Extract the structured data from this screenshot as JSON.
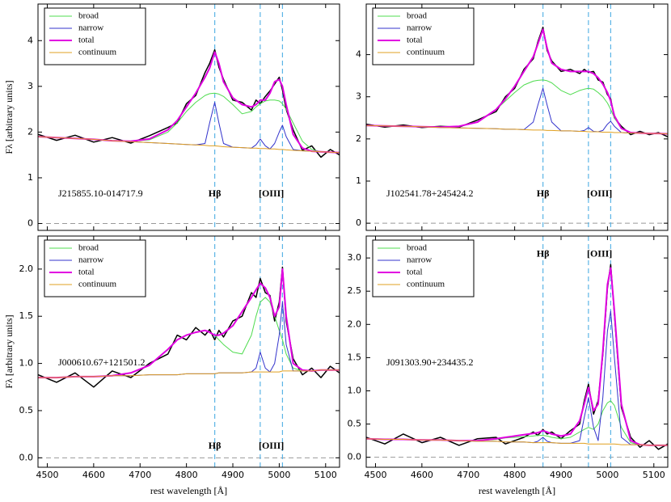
{
  "chart_data": [
    {
      "type": "line",
      "ylabel": "Fλ [arbitrary units]",
      "name_label": "J215855.10-014717.9",
      "line_labels": [
        "Hβ",
        "[OIII]"
      ],
      "legend": "upper left",
      "xlim": [
        4480,
        5130
      ],
      "xticks": [
        4500,
        4600,
        4700,
        4800,
        4900,
        5000,
        5100
      ],
      "ylim": [
        -0.15,
        4.8
      ],
      "yticks": [
        0,
        1,
        2,
        3,
        4
      ],
      "lines": [
        4861,
        4959,
        5007
      ],
      "lines_color": "#5bb4e6",
      "hline": 0,
      "x": [
        4480,
        4520,
        4560,
        4600,
        4640,
        4680,
        4720,
        4760,
        4780,
        4800,
        4820,
        4840,
        4850,
        4861,
        4870,
        4880,
        4900,
        4920,
        4940,
        4950,
        4959,
        4970,
        4980,
        4990,
        5000,
        5007,
        5015,
        5030,
        5050,
        5070,
        5090,
        5110,
        5130
      ],
      "spectrum": {
        "color": "#000000",
        "values": [
          1.95,
          1.82,
          1.93,
          1.78,
          1.88,
          1.76,
          1.92,
          2.1,
          2.2,
          2.62,
          2.8,
          3.3,
          3.5,
          3.8,
          3.42,
          3.15,
          2.7,
          2.65,
          2.48,
          2.7,
          2.62,
          2.78,
          2.9,
          3.05,
          3.2,
          2.92,
          2.5,
          2.05,
          1.6,
          1.7,
          1.45,
          1.62,
          1.5
        ]
      },
      "series": [
        {
          "name": "broad",
          "color": "#4fdc4f",
          "values": [
            1.9,
            1.88,
            1.86,
            1.84,
            1.81,
            1.8,
            1.83,
            2.0,
            2.2,
            2.45,
            2.65,
            2.8,
            2.84,
            2.85,
            2.83,
            2.78,
            2.6,
            2.4,
            2.45,
            2.55,
            2.62,
            2.68,
            2.7,
            2.7,
            2.68,
            2.62,
            2.5,
            2.2,
            1.8,
            1.62,
            1.57,
            1.56,
            1.55
          ]
        },
        {
          "name": "narrow",
          "color": "#3333cc",
          "values": [
            1.9,
            1.88,
            1.86,
            1.84,
            1.81,
            1.79,
            1.77,
            1.75,
            1.74,
            1.73,
            1.72,
            1.75,
            2.2,
            2.65,
            2.2,
            1.75,
            1.67,
            1.66,
            1.65,
            1.72,
            1.85,
            1.7,
            1.63,
            1.75,
            2.0,
            2.15,
            1.9,
            1.62,
            1.59,
            1.58,
            1.57,
            1.56,
            1.55
          ]
        },
        {
          "name": "total",
          "color": "#e100e1",
          "values": [
            1.9,
            1.88,
            1.86,
            1.84,
            1.81,
            1.8,
            1.85,
            2.05,
            2.25,
            2.55,
            2.85,
            3.2,
            3.4,
            3.75,
            3.5,
            3.1,
            2.75,
            2.6,
            2.55,
            2.6,
            2.7,
            2.7,
            2.85,
            3.1,
            3.15,
            3.0,
            2.6,
            1.95,
            1.65,
            1.58,
            1.57,
            1.56,
            1.55
          ]
        },
        {
          "name": "continuum",
          "color": "#e0a020",
          "values": [
            1.9,
            1.88,
            1.86,
            1.84,
            1.81,
            1.79,
            1.77,
            1.75,
            1.74,
            1.73,
            1.72,
            1.71,
            1.7,
            1.7,
            1.69,
            1.68,
            1.67,
            1.66,
            1.65,
            1.65,
            1.64,
            1.64,
            1.63,
            1.63,
            1.62,
            1.62,
            1.61,
            1.6,
            1.59,
            1.58,
            1.57,
            1.56,
            1.55
          ]
        }
      ]
    },
    {
      "type": "line",
      "name_label": "J102541.78+245424.2",
      "line_labels": [
        "Hβ",
        "[OIII]"
      ],
      "legend": "upper left",
      "xlim": [
        4480,
        5130
      ],
      "xticks": [
        4500,
        4600,
        4700,
        4800,
        4900,
        5000,
        5100
      ],
      "ylim": [
        -0.17,
        5.2
      ],
      "yticks": [
        0,
        1,
        2,
        3,
        4
      ],
      "lines": [
        4861,
        4959,
        5007
      ],
      "lines_color": "#5bb4e6",
      "hline": 0,
      "x": [
        4480,
        4520,
        4560,
        4600,
        4640,
        4680,
        4720,
        4760,
        4780,
        4800,
        4820,
        4840,
        4850,
        4861,
        4870,
        4880,
        4900,
        4920,
        4940,
        4950,
        4959,
        4970,
        4980,
        4990,
        5000,
        5007,
        5015,
        5030,
        5050,
        5070,
        5090,
        5110,
        5130
      ],
      "spectrum": {
        "color": "#000000",
        "values": [
          2.35,
          2.28,
          2.33,
          2.27,
          2.3,
          2.28,
          2.45,
          2.65,
          3.0,
          3.2,
          3.65,
          3.9,
          4.3,
          4.65,
          4.1,
          3.85,
          3.6,
          3.65,
          3.55,
          3.65,
          3.58,
          3.6,
          3.4,
          3.35,
          3.05,
          2.95,
          2.5,
          2.3,
          2.1,
          2.18,
          2.1,
          2.15,
          2.05
        ]
      },
      "series": [
        {
          "name": "broad",
          "color": "#4fdc4f",
          "values": [
            2.32,
            2.31,
            2.3,
            2.29,
            2.28,
            2.3,
            2.4,
            2.7,
            2.9,
            3.1,
            3.28,
            3.37,
            3.39,
            3.4,
            3.38,
            3.33,
            3.15,
            3.05,
            3.15,
            3.18,
            3.2,
            3.18,
            3.1,
            3.0,
            2.85,
            2.7,
            2.5,
            2.25,
            2.15,
            2.14,
            2.13,
            2.13,
            2.12
          ]
        },
        {
          "name": "narrow",
          "color": "#3333cc",
          "values": [
            2.32,
            2.31,
            2.3,
            2.29,
            2.27,
            2.26,
            2.25,
            2.24,
            2.23,
            2.23,
            2.22,
            2.4,
            2.8,
            3.2,
            2.8,
            2.4,
            2.19,
            2.19,
            2.18,
            2.2,
            2.27,
            2.18,
            2.17,
            2.2,
            2.35,
            2.42,
            2.3,
            2.15,
            2.14,
            2.14,
            2.13,
            2.13,
            2.12
          ]
        },
        {
          "name": "total",
          "color": "#e100e1",
          "values": [
            2.32,
            2.31,
            2.3,
            2.29,
            2.28,
            2.3,
            2.4,
            2.7,
            2.95,
            3.25,
            3.6,
            3.95,
            4.25,
            4.6,
            4.15,
            3.8,
            3.65,
            3.6,
            3.6,
            3.6,
            3.6,
            3.55,
            3.45,
            3.3,
            3.1,
            2.9,
            2.55,
            2.25,
            2.15,
            2.14,
            2.13,
            2.13,
            2.12
          ]
        },
        {
          "name": "continuum",
          "color": "#e0a020",
          "values": [
            2.32,
            2.31,
            2.3,
            2.29,
            2.27,
            2.26,
            2.25,
            2.24,
            2.23,
            2.23,
            2.22,
            2.21,
            2.21,
            2.21,
            2.2,
            2.2,
            2.19,
            2.19,
            2.18,
            2.18,
            2.17,
            2.17,
            2.17,
            2.16,
            2.16,
            2.16,
            2.15,
            2.15,
            2.14,
            2.14,
            2.13,
            2.13,
            2.12
          ]
        }
      ]
    },
    {
      "type": "line",
      "ylabel": "Fλ [arbitrary units]",
      "xlabel": "rest wavelength [Å]",
      "name_label": "J000610.67+121501.2",
      "line_labels": [
        "Hβ",
        "[OIII]"
      ],
      "legend": "upper left",
      "xlim": [
        4480,
        5130
      ],
      "xticks": [
        4500,
        4600,
        4700,
        4800,
        4900,
        5000,
        5100
      ],
      "ylim": [
        -0.1,
        2.35
      ],
      "yticks": [
        {
          "value": 0,
          "label": "0.0"
        },
        {
          "value": 0.5,
          "label": "0.5"
        },
        {
          "value": 1,
          "label": "1.0"
        },
        {
          "value": 1.5,
          "label": "1.5"
        },
        {
          "value": 2,
          "label": "2.0"
        }
      ],
      "lines": [
        4861,
        4959,
        5007
      ],
      "lines_color": "#5bb4e6",
      "hline": 0,
      "x": [
        4480,
        4520,
        4560,
        4600,
        4640,
        4680,
        4720,
        4760,
        4780,
        4800,
        4820,
        4840,
        4850,
        4861,
        4870,
        4880,
        4900,
        4920,
        4940,
        4950,
        4959,
        4970,
        4980,
        4990,
        5000,
        5007,
        5015,
        5030,
        5050,
        5070,
        5090,
        5110,
        5130
      ],
      "spectrum": {
        "color": "#000000",
        "values": [
          0.88,
          0.8,
          0.9,
          0.75,
          0.92,
          0.85,
          1.0,
          1.1,
          1.3,
          1.25,
          1.38,
          1.3,
          1.36,
          1.25,
          1.35,
          1.28,
          1.45,
          1.5,
          1.75,
          1.7,
          1.9,
          1.75,
          1.72,
          1.45,
          1.65,
          2.02,
          1.45,
          1.05,
          0.88,
          0.95,
          0.85,
          0.97,
          0.9
        ]
      },
      "series": [
        {
          "name": "broad",
          "color": "#4fdc4f",
          "values": [
            0.85,
            0.85,
            0.86,
            0.86,
            0.87,
            0.9,
            0.98,
            1.15,
            1.25,
            1.3,
            1.33,
            1.35,
            1.33,
            1.3,
            1.25,
            1.2,
            1.12,
            1.1,
            1.3,
            1.5,
            1.65,
            1.7,
            1.65,
            1.5,
            1.35,
            1.25,
            1.1,
            0.95,
            0.92,
            0.92,
            0.93,
            0.93,
            0.93
          ]
        },
        {
          "name": "narrow",
          "color": "#3333cc",
          "values": [
            0.85,
            0.85,
            0.86,
            0.86,
            0.87,
            0.87,
            0.88,
            0.88,
            0.88,
            0.89,
            0.89,
            0.89,
            0.89,
            0.89,
            0.9,
            0.9,
            0.9,
            0.9,
            0.91,
            0.95,
            1.12,
            0.95,
            0.91,
            1.0,
            1.3,
            1.65,
            1.2,
            0.92,
            0.92,
            0.92,
            0.93,
            0.93,
            0.93
          ]
        },
        {
          "name": "total",
          "color": "#e100e1",
          "values": [
            0.85,
            0.85,
            0.86,
            0.86,
            0.87,
            0.9,
            0.98,
            1.15,
            1.25,
            1.3,
            1.33,
            1.35,
            1.33,
            1.3,
            1.3,
            1.32,
            1.4,
            1.55,
            1.7,
            1.78,
            1.85,
            1.8,
            1.7,
            1.5,
            1.6,
            2.0,
            1.5,
            1.0,
            0.93,
            0.92,
            0.93,
            0.93,
            0.93
          ]
        },
        {
          "name": "continuum",
          "color": "#e0a020",
          "values": [
            0.85,
            0.85,
            0.86,
            0.86,
            0.87,
            0.87,
            0.88,
            0.88,
            0.88,
            0.89,
            0.89,
            0.89,
            0.89,
            0.89,
            0.9,
            0.9,
            0.9,
            0.9,
            0.91,
            0.91,
            0.91,
            0.91,
            0.91,
            0.91,
            0.91,
            0.92,
            0.92,
            0.92,
            0.92,
            0.92,
            0.93,
            0.93,
            0.93
          ]
        }
      ]
    },
    {
      "type": "line",
      "xlabel": "rest wavelength [Å]",
      "name_label": "J091303.90+234435.2",
      "line_labels": [
        "Hβ",
        "[OIII]"
      ],
      "legend": "upper left",
      "xlim": [
        4480,
        5130
      ],
      "xticks": [
        4500,
        4600,
        4700,
        4800,
        4900,
        5000,
        5100
      ],
      "ylim": [
        -0.15,
        3.33
      ],
      "yticks": [
        {
          "value": 0,
          "label": "0.0"
        },
        {
          "value": 0.5,
          "label": "0.5"
        },
        {
          "value": 1,
          "label": "1.0"
        },
        {
          "value": 1.5,
          "label": "1.5"
        },
        {
          "value": 2,
          "label": "2.0"
        },
        {
          "value": 2.5,
          "label": "2.5"
        },
        {
          "value": 3,
          "label": "3.0"
        }
      ],
      "lines": [
        4861,
        4959,
        5007
      ],
      "lines_color": "#5bb4e6",
      "hline": 0,
      "x": [
        4480,
        4520,
        4560,
        4600,
        4640,
        4680,
        4720,
        4760,
        4780,
        4800,
        4820,
        4840,
        4850,
        4861,
        4870,
        4880,
        4900,
        4920,
        4940,
        4950,
        4959,
        4970,
        4980,
        4990,
        5000,
        5007,
        5015,
        5030,
        5050,
        5070,
        5090,
        5110,
        5130
      ],
      "spectrum": {
        "color": "#000000",
        "values": [
          0.3,
          0.2,
          0.35,
          0.22,
          0.3,
          0.18,
          0.28,
          0.3,
          0.2,
          0.25,
          0.3,
          0.38,
          0.33,
          0.42,
          0.35,
          0.38,
          0.28,
          0.4,
          0.5,
          0.85,
          1.1,
          0.65,
          0.85,
          1.55,
          2.55,
          2.9,
          2.15,
          0.75,
          0.3,
          0.15,
          0.25,
          0.12,
          0.2
        ]
      },
      "series": [
        {
          "name": "broad",
          "color": "#4fdc4f",
          "values": [
            0.28,
            0.27,
            0.27,
            0.26,
            0.26,
            0.25,
            0.25,
            0.27,
            0.29,
            0.3,
            0.31,
            0.32,
            0.33,
            0.33,
            0.32,
            0.3,
            0.28,
            0.3,
            0.38,
            0.42,
            0.45,
            0.42,
            0.5,
            0.7,
            0.82,
            0.85,
            0.78,
            0.45,
            0.22,
            0.19,
            0.18,
            0.18,
            0.18
          ]
        },
        {
          "name": "narrow",
          "color": "#3333cc",
          "values": [
            0.28,
            0.27,
            0.27,
            0.26,
            0.26,
            0.25,
            0.24,
            0.24,
            0.23,
            0.23,
            0.23,
            0.22,
            0.24,
            0.3,
            0.24,
            0.22,
            0.21,
            0.21,
            0.25,
            0.6,
            0.9,
            0.45,
            0.25,
            0.9,
            1.9,
            2.2,
            1.5,
            0.3,
            0.19,
            0.19,
            0.18,
            0.18,
            0.18
          ]
        },
        {
          "name": "total",
          "color": "#e100e1",
          "values": [
            0.28,
            0.27,
            0.27,
            0.26,
            0.26,
            0.25,
            0.25,
            0.28,
            0.3,
            0.32,
            0.34,
            0.36,
            0.37,
            0.4,
            0.38,
            0.35,
            0.32,
            0.35,
            0.55,
            0.8,
            1.05,
            0.7,
            0.8,
            1.6,
            2.6,
            2.85,
            2.2,
            0.8,
            0.25,
            0.19,
            0.18,
            0.18,
            0.18
          ]
        },
        {
          "name": "continuum",
          "color": "#e0a020",
          "values": [
            0.28,
            0.27,
            0.27,
            0.26,
            0.26,
            0.25,
            0.24,
            0.24,
            0.23,
            0.23,
            0.23,
            0.22,
            0.22,
            0.22,
            0.22,
            0.22,
            0.21,
            0.21,
            0.21,
            0.21,
            0.2,
            0.2,
            0.2,
            0.2,
            0.2,
            0.2,
            0.2,
            0.19,
            0.19,
            0.19,
            0.18,
            0.18,
            0.18
          ]
        }
      ]
    }
  ]
}
